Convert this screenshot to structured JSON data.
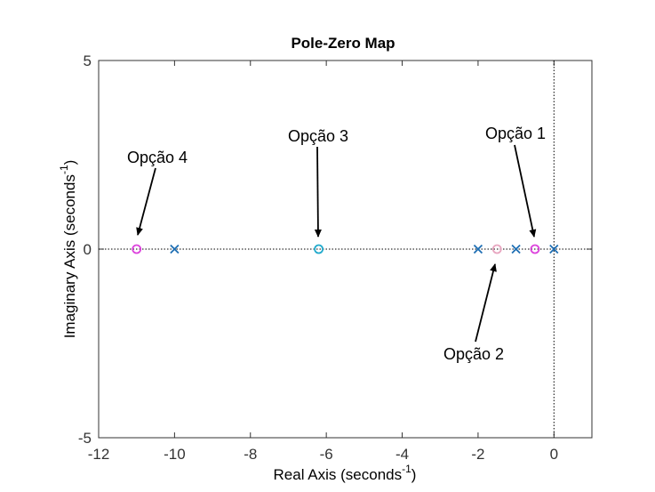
{
  "chart_data": {
    "type": "scatter",
    "title": "Pole-Zero Map",
    "xlabel_main": "Real Axis (seconds",
    "xlabel_sup": "-1",
    "xlabel_end": ")",
    "ylabel_main": "Imaginary Axis (seconds",
    "ylabel_sup": "-1",
    "ylabel_end": ")",
    "xlim": [
      -12,
      1
    ],
    "ylim": [
      -5,
      5
    ],
    "xticks": [
      -12,
      -10,
      -8,
      -6,
      -4,
      -2,
      0
    ],
    "yticks": [
      -5,
      0,
      5
    ],
    "grid": false,
    "poles": [
      {
        "x": -10,
        "y": 0
      },
      {
        "x": -2,
        "y": 0
      },
      {
        "x": -1,
        "y": 0
      },
      {
        "x": 0,
        "y": 0
      }
    ],
    "zeros": [
      {
        "x": -11,
        "y": 0,
        "color": "#dd44dd"
      },
      {
        "x": -6.2,
        "y": 0,
        "color": "#22aacc"
      },
      {
        "x": -1.5,
        "y": 0,
        "color": "#e8a6c0"
      },
      {
        "x": -0.5,
        "y": 0,
        "color": "#dd44dd"
      }
    ],
    "annotations": [
      {
        "text": "Opção 1",
        "x": -0.5,
        "y": 0
      },
      {
        "text": "Opção 2",
        "x": -1.5,
        "y": 0
      },
      {
        "text": "Opção 3",
        "x": -6.2,
        "y": 0
      },
      {
        "text": "Opção 4",
        "x": -11,
        "y": 0
      }
    ],
    "pole_color": "#1f6fb4"
  }
}
